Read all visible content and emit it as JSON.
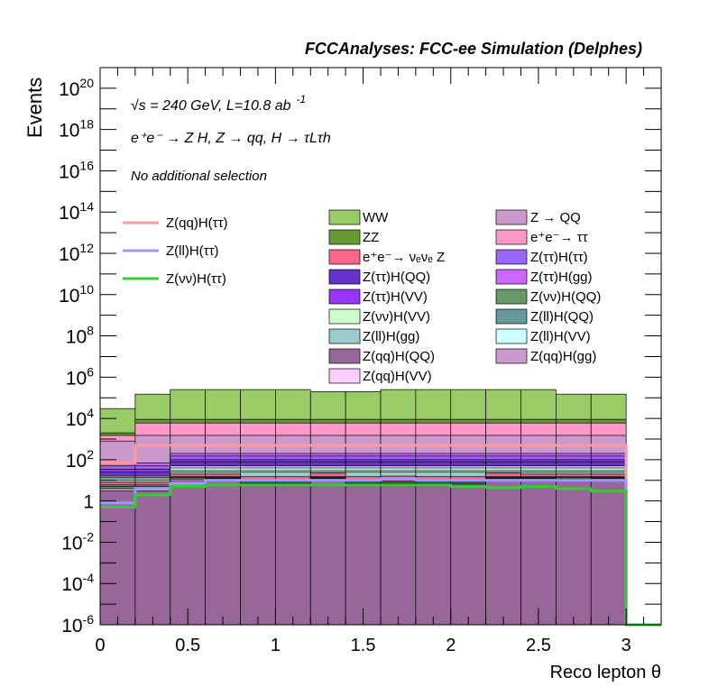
{
  "header": {
    "title": "FCCAnalyses: FCC-ee Simulation (Delphes)",
    "energy_line": "√s = 240 GeV, L=10.8 ab",
    "energy_sup": "-1",
    "process_line": "e⁺e⁻ → Z H, Z → qq, H → τLτh",
    "selection": "No additional selection"
  },
  "chart_data": {
    "type": "bar",
    "stacked_histogram": true,
    "log_y": true,
    "xlabel": "Reco lepton θ",
    "ylabel": "Events",
    "xlim": [
      0,
      3.2
    ],
    "ylim": [
      1e-06,
      1e+21
    ],
    "bin_edges": [
      0,
      0.2,
      0.4,
      0.6,
      0.8,
      1.0,
      1.2,
      1.4,
      1.6,
      1.8,
      2.0,
      2.2,
      2.4,
      2.6,
      2.8,
      3.0
    ],
    "x_ticks": [
      "0",
      "0.5",
      "1",
      "1.5",
      "2",
      "2.5",
      "3"
    ],
    "x_tick_values": [
      0,
      0.5,
      1,
      1.5,
      2,
      2.5,
      3
    ],
    "y_ticks": [
      {
        "value": 1e-06,
        "label": "10",
        "exp": "-6"
      },
      {
        "value": 0.0001,
        "label": "10",
        "exp": "-4"
      },
      {
        "value": 0.01,
        "label": "10",
        "exp": "-2"
      },
      {
        "value": 1,
        "label": "1",
        "exp": ""
      },
      {
        "value": 100.0,
        "label": "10",
        "exp": "2"
      },
      {
        "value": 10000.0,
        "label": "10",
        "exp": "4"
      },
      {
        "value": 1000000.0,
        "label": "10",
        "exp": "6"
      },
      {
        "value": 100000000.0,
        "label": "10",
        "exp": "8"
      },
      {
        "value": 10000000000.0,
        "label": "10",
        "exp": "10"
      },
      {
        "value": 1000000000000.0,
        "label": "10",
        "exp": "12"
      },
      {
        "value": 100000000000000.0,
        "label": "10",
        "exp": "14"
      },
      {
        "value": 1e+16,
        "label": "10",
        "exp": "16"
      },
      {
        "value": 1e+18,
        "label": "10",
        "exp": "18"
      },
      {
        "value": 1e+20,
        "label": "10",
        "exp": "20"
      }
    ],
    "stack_bottom_to_top": [
      {
        "name": "Z(qq)H(QQ)",
        "color": "#996699",
        "cumulative": [
          3,
          3,
          12,
          12,
          6,
          6,
          12,
          6,
          6,
          6,
          6,
          12,
          12,
          12,
          12
        ]
      },
      {
        "name": "Z(qq)H(gg)",
        "color": "#cc99cc",
        "cumulative": [
          4,
          4,
          0.001,
          13,
          7,
          7,
          13,
          7,
          7,
          7,
          7,
          13,
          13,
          0.001,
          13
        ]
      },
      {
        "name": "Z(νν)H(QQ)",
        "color": "#669966",
        "cumulative": [
          5,
          5,
          14,
          14,
          8,
          8,
          14,
          8,
          8,
          8,
          8,
          14,
          14,
          14,
          14
        ]
      },
      {
        "name": "Z(ll)H(QQ)",
        "color": "#669999",
        "cumulative": [
          6,
          6,
          15,
          15,
          9,
          9,
          15,
          9,
          9,
          9,
          9,
          15,
          15,
          15,
          15
        ]
      },
      {
        "name": "e⁺e⁻→ νₑνₑ Z",
        "color": "#ff6688",
        "cumulative": [
          8,
          8,
          20,
          20,
          15,
          15,
          22,
          15,
          16,
          15,
          15,
          22,
          20,
          20,
          20
        ]
      },
      {
        "name": "Z(ll)H(gg)",
        "color": "#99cccc",
        "cumulative": [
          10,
          10,
          25,
          25,
          25,
          25,
          25,
          25,
          25,
          25,
          25,
          25,
          25,
          25,
          25
        ]
      },
      {
        "name": "Z(νν)H(VV)",
        "color": "#ccffcc",
        "cumulative": [
          12,
          12,
          30,
          30,
          30,
          30,
          30,
          30,
          30,
          30,
          30,
          30,
          30,
          30,
          30
        ]
      },
      {
        "name": "Z(ll)H(VV)",
        "color": "#ccffff",
        "cumulative": [
          14,
          14,
          40,
          40,
          40,
          40,
          40,
          40,
          40,
          40,
          40,
          40,
          40,
          40,
          40
        ]
      },
      {
        "name": "Z(qq)H(VV)",
        "color": "#ffccff",
        "cumulative": [
          16,
          16,
          50,
          50,
          50,
          50,
          50,
          50,
          50,
          50,
          50,
          50,
          50,
          50,
          50
        ]
      },
      {
        "name": "Z(ττ)H(QQ)",
        "color": "#6633cc",
        "cumulative": [
          25,
          25,
          80,
          80,
          80,
          80,
          80,
          80,
          80,
          80,
          80,
          80,
          80,
          80,
          80
        ]
      },
      {
        "name": "Z(ττ)H(VV)",
        "color": "#9933ff",
        "cumulative": [
          35,
          35,
          100,
          100,
          100,
          100,
          100,
          100,
          100,
          100,
          100,
          100,
          100,
          100,
          100
        ]
      },
      {
        "name": "Z(ττ)H(ττ)",
        "color": "#9966ff",
        "cumulative": [
          50,
          50,
          150,
          150,
          150,
          150,
          150,
          150,
          150,
          150,
          150,
          150,
          150,
          150,
          150
        ]
      },
      {
        "name": "Z(ττ)H(gg)",
        "color": "#cc66ff",
        "cumulative": [
          70,
          70,
          200,
          200,
          200,
          200,
          200,
          200,
          200,
          200,
          200,
          200,
          200,
          200,
          200
        ]
      },
      {
        "name": "Z → QQ",
        "color": "#cc99cc",
        "cumulative": [
          800,
          1500,
          1500,
          1500,
          1500,
          1500,
          1500,
          1500,
          1500,
          1500,
          1500,
          1500,
          1500,
          1500,
          1500
        ]
      },
      {
        "name": "e⁺e⁻→ ττ",
        "color": "#ff99cc",
        "cumulative": [
          1500,
          6000,
          6000,
          6000,
          6000,
          6000,
          6000,
          6000,
          6000,
          6000,
          6000,
          6000,
          6000,
          6000,
          6000
        ]
      },
      {
        "name": "ZZ",
        "color": "#669933",
        "cumulative": [
          2000,
          9000,
          9000,
          9000,
          9000,
          9000,
          9000,
          9000,
          9000,
          9000,
          9000,
          9000,
          9000,
          9000,
          9000
        ]
      },
      {
        "name": "WW",
        "color": "#99cc66",
        "cumulative": [
          30000,
          150000,
          250000,
          250000,
          250000,
          250000,
          200000,
          200000,
          250000,
          250000,
          250000,
          250000,
          250000,
          150000,
          150000
        ]
      }
    ],
    "signal_lines": [
      {
        "name": "Z(qq)H(ττ)",
        "color": "#ff9999",
        "edges": [
          0,
          0.2,
          3.0,
          3.2
        ],
        "values": [
          70,
          500,
          1e-07
        ]
      },
      {
        "name": "Z(ll)H(ττ)",
        "color": "#9999ff",
        "edges": [
          0,
          0.2,
          0.4,
          0.6,
          1.6,
          1.8,
          3.0,
          3.2
        ],
        "values": [
          0.8,
          4,
          7,
          10,
          12,
          10,
          1e-07
        ]
      },
      {
        "name": "Z(νν)H(ττ)",
        "color": "#33cc33",
        "edges": [
          0,
          0.2,
          0.4,
          0.6,
          1.8,
          2.0,
          2.2,
          2.4,
          2.6,
          2.8,
          3.0,
          3.2
        ],
        "values": [
          0.5,
          2,
          5,
          6,
          6,
          5,
          4.5,
          5,
          4,
          3,
          1e-07
        ]
      }
    ],
    "legend_lines": [
      "Z(qq)H(ττ)",
      "Z(ll)H(ττ)",
      "Z(νν)H(ττ)"
    ],
    "legend_col1": [
      "WW",
      "ZZ",
      "e⁺e⁻→ νₑνₑ Z",
      "Z(ττ)H(QQ)",
      "Z(ττ)H(VV)",
      "Z(νν)H(VV)",
      "Z(ll)H(gg)",
      "Z(qq)H(QQ)",
      "Z(qq)H(VV)"
    ],
    "legend_col2": [
      "Z → QQ",
      "e⁺e⁻→ ττ",
      "Z(ττ)H(ττ)",
      "Z(ττ)H(gg)",
      "Z(νν)H(QQ)",
      "Z(ll)H(QQ)",
      "Z(ll)H(VV)",
      "Z(qq)H(gg)"
    ],
    "legend_placement": "top",
    "grid": false
  }
}
